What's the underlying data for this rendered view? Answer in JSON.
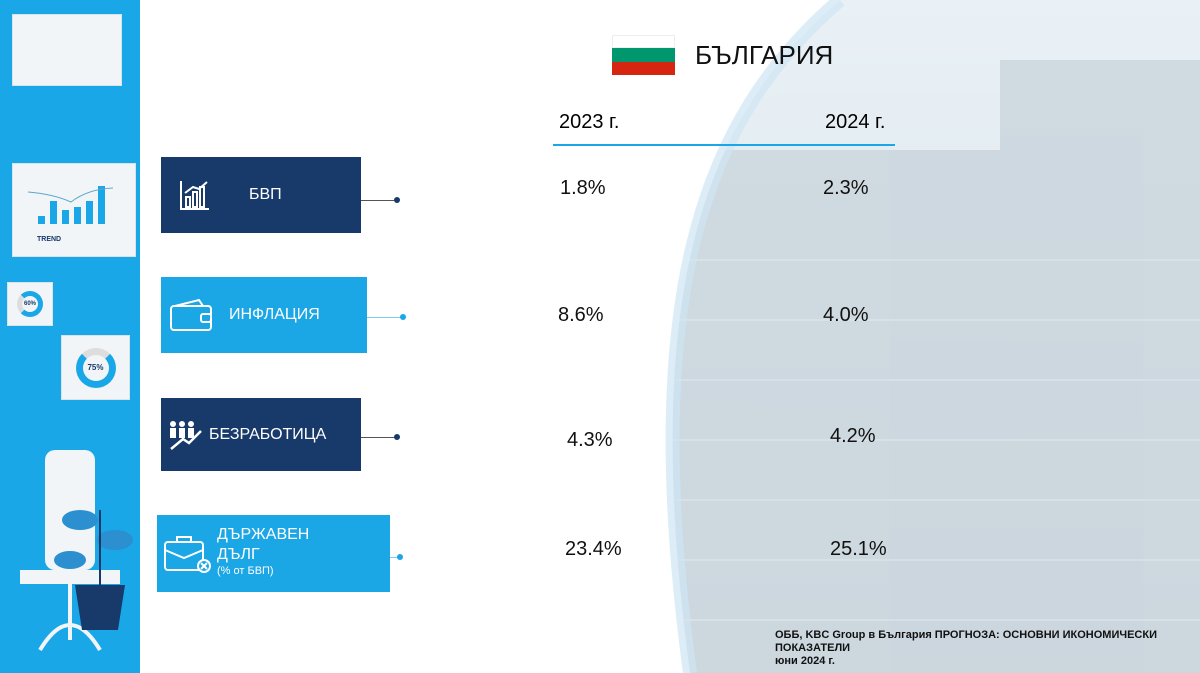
{
  "title": "БЪЛГАРИЯ",
  "years": [
    "2023 г.",
    "2024 г."
  ],
  "indicators": [
    {
      "label": "БВП",
      "icon": "bar-chart-growth-icon",
      "v2023": "1.8%",
      "v2024": "2.3%"
    },
    {
      "label": "ИНФЛАЦИЯ",
      "icon": "wallet-icon",
      "v2023": "8.6%",
      "v2024": "4.0%"
    },
    {
      "label": "БЕЗРАБОТИЦА",
      "icon": "people-trend-icon",
      "v2023": "4.3%",
      "v2024": "4.2%"
    },
    {
      "label": "ДЪРЖАВЕН",
      "label2": "ДЪЛГ",
      "sub": "(% от БВП)",
      "icon": "briefcase-icon",
      "v2023": "23.4%",
      "v2024": "25.1%"
    }
  ],
  "source": {
    "line1": "ОББ, KBC Group в България ПРОГНОЗА: ОСНОВНИ ИКОНОМИЧЕСКИ",
    "line2": "ПОКАЗАТЕЛИ",
    "line3": "юни 2024 г."
  },
  "decor": {
    "trend": "TREND",
    "donut1": "60%",
    "donut2": "75%"
  },
  "colors": {
    "navy": "#173a6b",
    "light": "#1ba6e6",
    "panel": "#1aa7e8"
  }
}
